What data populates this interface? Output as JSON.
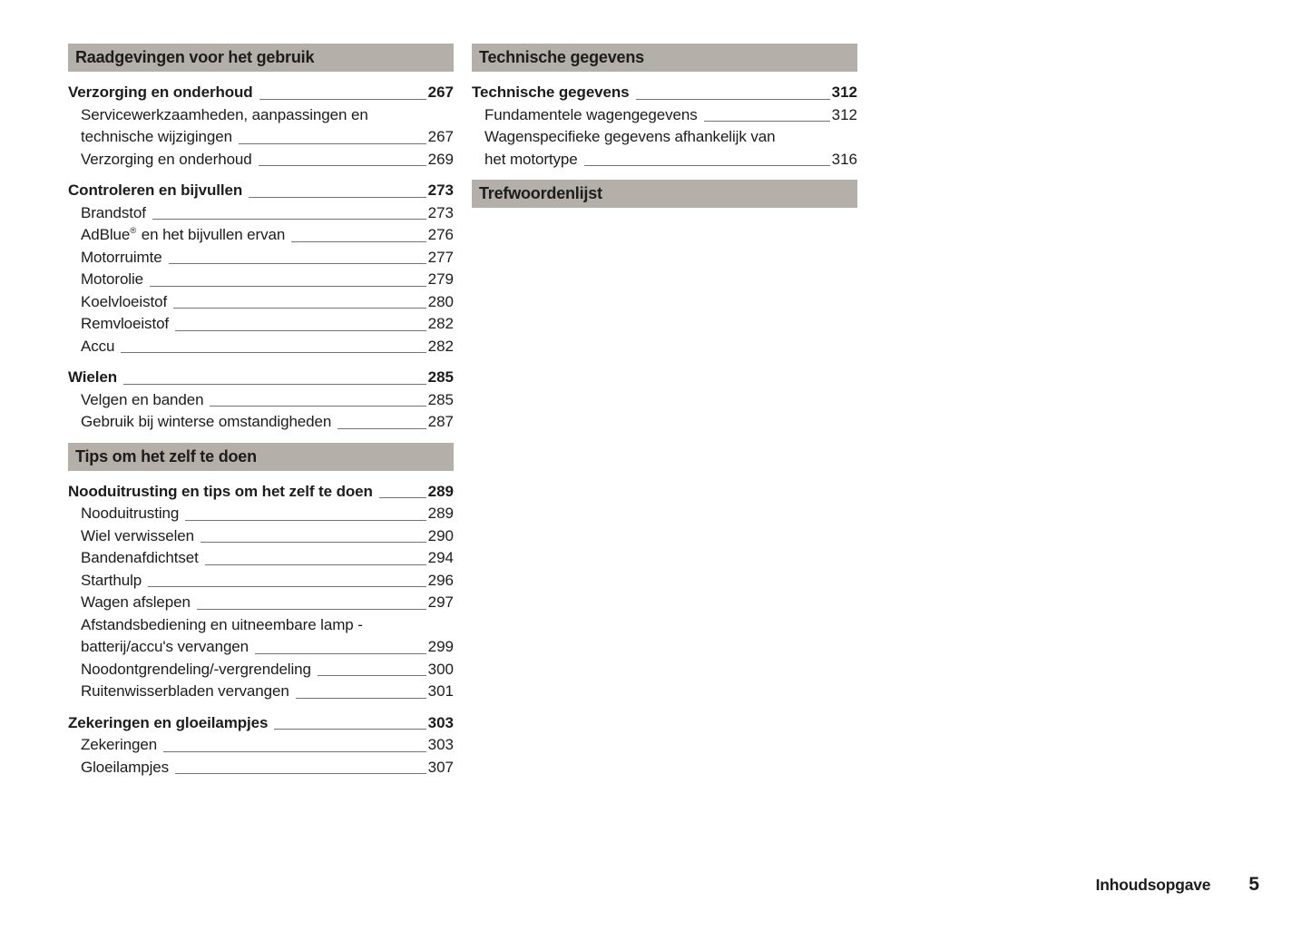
{
  "colors": {
    "section_header_bg": "#b5afa9",
    "text": "#1c1c1c",
    "leader_line": "#737373",
    "page_bg": "#ffffff"
  },
  "footer": {
    "label": "Inhoudsopgave",
    "page_number": "5"
  },
  "columns": [
    {
      "name": "left",
      "sections": [
        {
          "header": "Raadgevingen voor het gebruik",
          "groups": [
            {
              "entries": [
                {
                  "label": "Verzorging en onderhoud",
                  "page": "267",
                  "bold": true
                },
                {
                  "lines": [
                    "Servicewerkzaamheden, aanpassingen en",
                    "technische wijzigingen"
                  ],
                  "page": "267",
                  "indent": true
                },
                {
                  "label": "Verzorging en onderhoud",
                  "page": "269",
                  "indent": true
                }
              ]
            },
            {
              "entries": [
                {
                  "label": "Controleren en bijvullen",
                  "page": "273",
                  "bold": true
                },
                {
                  "label": "Brandstof",
                  "page": "273",
                  "indent": true
                },
                {
                  "label": "AdBlue",
                  "sup": "®",
                  "label_after": " en het bijvullen ervan",
                  "page": "276",
                  "indent": true
                },
                {
                  "label": "Motorruimte",
                  "page": "277",
                  "indent": true
                },
                {
                  "label": "Motorolie",
                  "page": "279",
                  "indent": true
                },
                {
                  "label": "Koelvloeistof",
                  "page": "280",
                  "indent": true
                },
                {
                  "label": "Remvloeistof",
                  "page": "282",
                  "indent": true
                },
                {
                  "label": "Accu",
                  "page": "282",
                  "indent": true
                }
              ]
            },
            {
              "entries": [
                {
                  "label": "Wielen",
                  "page": "285",
                  "bold": true
                },
                {
                  "label": "Velgen en banden",
                  "page": "285",
                  "indent": true
                },
                {
                  "label": "Gebruik bij winterse omstandigheden",
                  "page": "287",
                  "indent": true
                }
              ]
            }
          ]
        },
        {
          "header": "Tips om het zelf te doen",
          "groups": [
            {
              "entries": [
                {
                  "label": "Nooduitrusting en tips om het zelf te doen",
                  "page": "289",
                  "bold": true
                },
                {
                  "label": "Nooduitrusting",
                  "page": "289",
                  "indent": true
                },
                {
                  "label": "Wiel verwisselen",
                  "page": "290",
                  "indent": true
                },
                {
                  "label": "Bandenafdichtset",
                  "page": "294",
                  "indent": true
                },
                {
                  "label": "Starthulp",
                  "page": "296",
                  "indent": true
                },
                {
                  "label": "Wagen afslepen",
                  "page": "297",
                  "indent": true
                },
                {
                  "lines": [
                    "Afstandsbediening en uitneembare lamp -",
                    "batterij/accu's vervangen"
                  ],
                  "page": "299",
                  "indent": true
                },
                {
                  "label": "Noodontgrendeling/-vergrendeling",
                  "page": "300",
                  "indent": true
                },
                {
                  "label": "Ruitenwisserbladen vervangen",
                  "page": "301",
                  "indent": true
                }
              ]
            },
            {
              "entries": [
                {
                  "label": "Zekeringen en gloeilampjes",
                  "page": "303",
                  "bold": true
                },
                {
                  "label": "Zekeringen",
                  "page": "303",
                  "indent": true
                },
                {
                  "label": "Gloeilampjes",
                  "page": "307",
                  "indent": true
                }
              ]
            }
          ]
        }
      ]
    },
    {
      "name": "right",
      "sections": [
        {
          "header": "Technische gegevens",
          "groups": [
            {
              "entries": [
                {
                  "label": "Technische gegevens",
                  "page": "312",
                  "bold": true
                },
                {
                  "label": "Fundamentele wagengegevens",
                  "page": "312",
                  "indent": true
                },
                {
                  "lines": [
                    "Wagenspecifieke gegevens afhankelijk van",
                    "het motortype"
                  ],
                  "page": "316",
                  "indent": true
                }
              ]
            }
          ]
        },
        {
          "header": "Trefwoordenlijst",
          "groups": []
        }
      ]
    }
  ]
}
